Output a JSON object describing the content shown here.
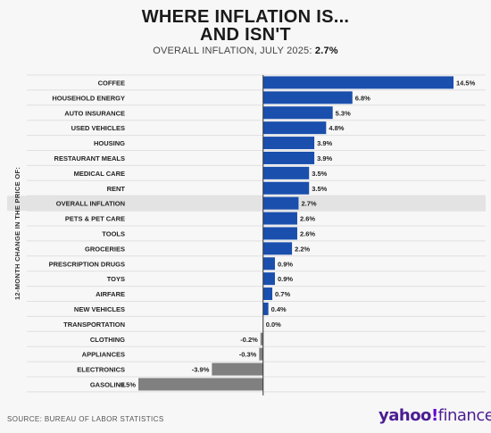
{
  "header": {
    "title_line1": "WHERE INFLATION IS...",
    "title_line2": "AND ISN'T",
    "subtitle_prefix": "OVERALL INFLATION, JULY 2025: ",
    "subtitle_value": "2.7%"
  },
  "footer": {
    "source": "SOURCE: BUREAU OF LABOR STATISTICS",
    "brand_main": "yahoo",
    "brand_bang": "!",
    "brand_suffix": "finance"
  },
  "colors": {
    "positive": "#1a4fad",
    "negative": "#808080",
    "highlight_row": "#e3e3e3",
    "axis": "#333333"
  },
  "chart_data": {
    "type": "bar",
    "orientation": "horizontal",
    "ylabel": "12-MONTH CHANGE IN THE PRICE OF:",
    "highlight": "OVERALL INFLATION",
    "value_suffix": "%",
    "xlim": [
      -9.5,
      14.5
    ],
    "categories": [
      "COFFEE",
      "HOUSEHOLD ENERGY",
      "AUTO INSURANCE",
      "USED VEHICLES",
      "HOUSING",
      "RESTAURANT MEALS",
      "MEDICAL CARE",
      "RENT",
      "OVERALL INFLATION",
      "PETS & PET CARE",
      "TOOLS",
      "GROCERIES",
      "PRESCRIPTION DRUGS",
      "TOYS",
      "AIRFARE",
      "NEW VEHICLES",
      "TRANSPORTATION",
      "CLOTHING",
      "APPLIANCES",
      "ELECTRONICS",
      "GASOLINE"
    ],
    "values": [
      14.5,
      6.8,
      5.3,
      4.8,
      3.9,
      3.9,
      3.5,
      3.5,
      2.7,
      2.6,
      2.6,
      2.2,
      0.9,
      0.9,
      0.7,
      0.4,
      0.0,
      -0.2,
      -0.3,
      -3.9,
      -9.5
    ]
  }
}
